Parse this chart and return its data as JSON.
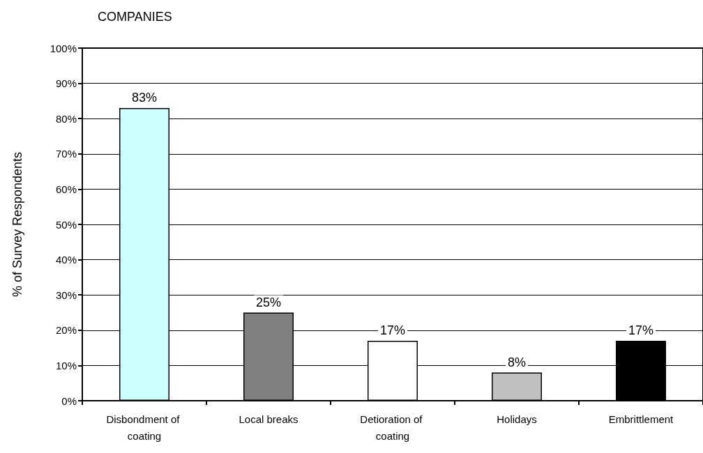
{
  "chart_data": {
    "type": "bar",
    "title": "COMPANIES",
    "ylabel": "% of Survey Respondents",
    "categories": [
      "Disbondment of coating",
      "Local breaks",
      "Detioration of coating",
      "Holidays",
      "Embrittlement"
    ],
    "values": [
      83,
      25,
      17,
      8,
      17
    ],
    "colors": [
      "#ccffff",
      "#808080",
      "#ffffff",
      "#c0c0c0",
      "#000000"
    ],
    "value_labels": [
      "83%",
      "25%",
      "17%",
      "8%",
      "17%"
    ],
    "ylim": [
      0,
      100
    ],
    "yticks": [
      {
        "value": 0,
        "label": "0%"
      },
      {
        "value": 10,
        "label": "10%"
      },
      {
        "value": 20,
        "label": "20%"
      },
      {
        "value": 30,
        "label": "30%"
      },
      {
        "value": 40,
        "label": "40%"
      },
      {
        "value": 50,
        "label": "50%"
      },
      {
        "value": 60,
        "label": "60%"
      },
      {
        "value": 70,
        "label": "70%"
      },
      {
        "value": 80,
        "label": "80%"
      },
      {
        "value": 90,
        "label": "90%"
      },
      {
        "value": 100,
        "label": "100%"
      }
    ],
    "grid": "y"
  }
}
